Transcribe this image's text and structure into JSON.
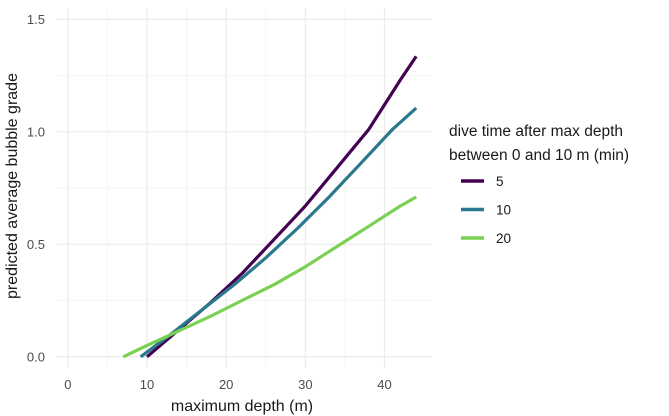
{
  "chart_data": {
    "type": "line",
    "title": "",
    "xlabel": "maximum depth (m)",
    "ylabel": "predicted average bubble grade",
    "xlim": [
      -1.5,
      46
    ],
    "ylim": [
      -0.05,
      1.55
    ],
    "x_ticks": [
      0,
      10,
      20,
      30,
      40
    ],
    "y_ticks": [
      0.0,
      0.5,
      1.0,
      1.5
    ],
    "x_tick_labels": [
      "0",
      "10",
      "20",
      "30",
      "40"
    ],
    "y_tick_labels": [
      "0.0",
      "0.5",
      "1.0",
      "1.5"
    ],
    "grid": true,
    "legend": {
      "title_line1": "dive time after max depth",
      "title_line2": "between 0 and 10 m (min)",
      "position": "right"
    },
    "series": [
      {
        "name": "5",
        "color": "#440154",
        "x": [
          10,
          14,
          18,
          22,
          26,
          30,
          34,
          38,
          42,
          44
        ],
        "y": [
          0.0,
          0.12,
          0.24,
          0.37,
          0.52,
          0.67,
          0.84,
          1.01,
          1.23,
          1.335
        ]
      },
      {
        "name": "10",
        "color": "#2a788e",
        "x": [
          9.2,
          13,
          17,
          21,
          25,
          29,
          33,
          37,
          41,
          44
        ],
        "y": [
          0.0,
          0.1,
          0.21,
          0.32,
          0.44,
          0.57,
          0.71,
          0.86,
          1.01,
          1.105
        ]
      },
      {
        "name": "20",
        "color": "#7ad151",
        "x": [
          7,
          10,
          14,
          18,
          22,
          26,
          30,
          34,
          38,
          42,
          44
        ],
        "y": [
          0.0,
          0.05,
          0.115,
          0.18,
          0.25,
          0.32,
          0.4,
          0.49,
          0.58,
          0.67,
          0.71
        ]
      }
    ]
  }
}
